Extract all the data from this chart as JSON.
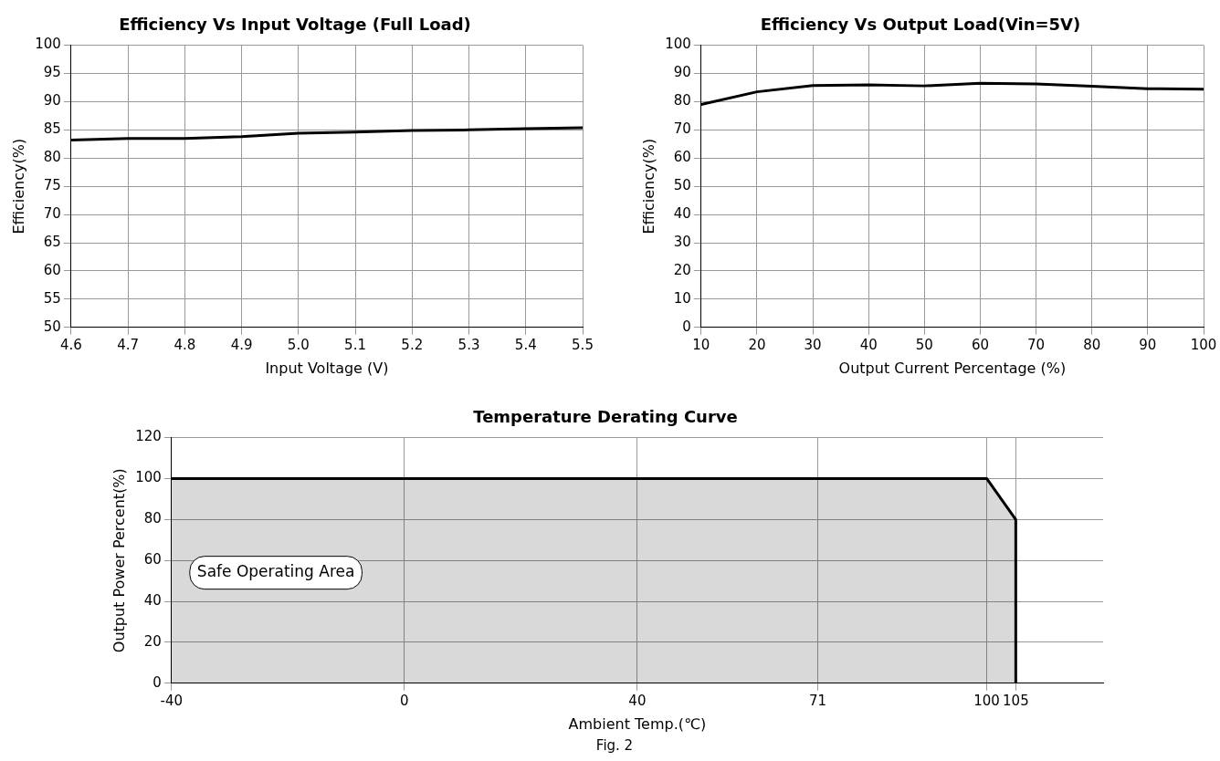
{
  "chart_data": [
    {
      "type": "line",
      "title": "Efficiency Vs Input Voltage (Full Load)",
      "xlabel": "Input Voltage (V)",
      "ylabel": "Efficiency(%)",
      "xlim": [
        4.6,
        5.5
      ],
      "xticks": [
        {
          "value": 4.6,
          "label": "4.6"
        },
        {
          "value": 4.7,
          "label": "4.7"
        },
        {
          "value": 4.8,
          "label": "4.8"
        },
        {
          "value": 4.9,
          "label": "4.9"
        },
        {
          "value": 5.0,
          "label": "5.0"
        },
        {
          "value": 5.1,
          "label": "5.1"
        },
        {
          "value": 5.2,
          "label": "5.2"
        },
        {
          "value": 5.3,
          "label": "5.3"
        },
        {
          "value": 5.4,
          "label": "5.4"
        },
        {
          "value": 5.5,
          "label": "5.5"
        }
      ],
      "ylim": [
        50,
        100
      ],
      "yticks": [
        50,
        55,
        60,
        65,
        70,
        75,
        80,
        85,
        90,
        95,
        100
      ],
      "grid": true,
      "marker": "none",
      "series": [
        {
          "color": "#000000",
          "x": [
            4.6,
            4.7,
            4.8,
            4.9,
            5.0,
            5.1,
            5.2,
            5.3,
            5.4,
            5.5
          ],
          "values": [
            83.2,
            83.5,
            83.5,
            83.8,
            84.4,
            84.6,
            84.9,
            85.0,
            85.2,
            85.4
          ]
        }
      ]
    },
    {
      "type": "line",
      "title": "Efficiency Vs Output Load(Vin=5V)",
      "xlabel": "Output Current Percentage (%)",
      "ylabel": "Efficiency(%)",
      "xlim": [
        10,
        100
      ],
      "xticks": [
        10,
        20,
        30,
        40,
        50,
        60,
        70,
        80,
        90,
        100
      ],
      "ylim": [
        0,
        100
      ],
      "yticks": [
        0,
        10,
        20,
        30,
        40,
        50,
        60,
        70,
        80,
        90,
        100
      ],
      "grid": true,
      "marker": "none",
      "series": [
        {
          "color": "#000000",
          "x": [
            10,
            20,
            30,
            40,
            50,
            60,
            70,
            80,
            90,
            100
          ],
          "values": [
            79,
            83.5,
            85.7,
            86,
            85.6,
            86.5,
            86.3,
            85.5,
            84.6,
            84.4
          ]
        }
      ]
    },
    {
      "type": "area",
      "title": "Temperature Derating Curve",
      "xlabel": "Ambient Temp.(℃)",
      "ylabel": "Output Power Percent(%)",
      "xlim": [
        -40,
        120
      ],
      "xticks": [
        -40,
        0,
        40,
        71,
        100,
        105
      ],
      "ylim": [
        0,
        120
      ],
      "yticks": [
        0,
        20,
        40,
        60,
        80,
        100,
        120
      ],
      "grid": true,
      "marker": "none",
      "annotations": [
        "Safe Operating Area",
        "Fig. 2"
      ],
      "series": [
        {
          "color": "#000000",
          "x": [
            -40,
            100,
            105,
            105
          ],
          "values": [
            100,
            100,
            80,
            0
          ]
        }
      ]
    }
  ]
}
